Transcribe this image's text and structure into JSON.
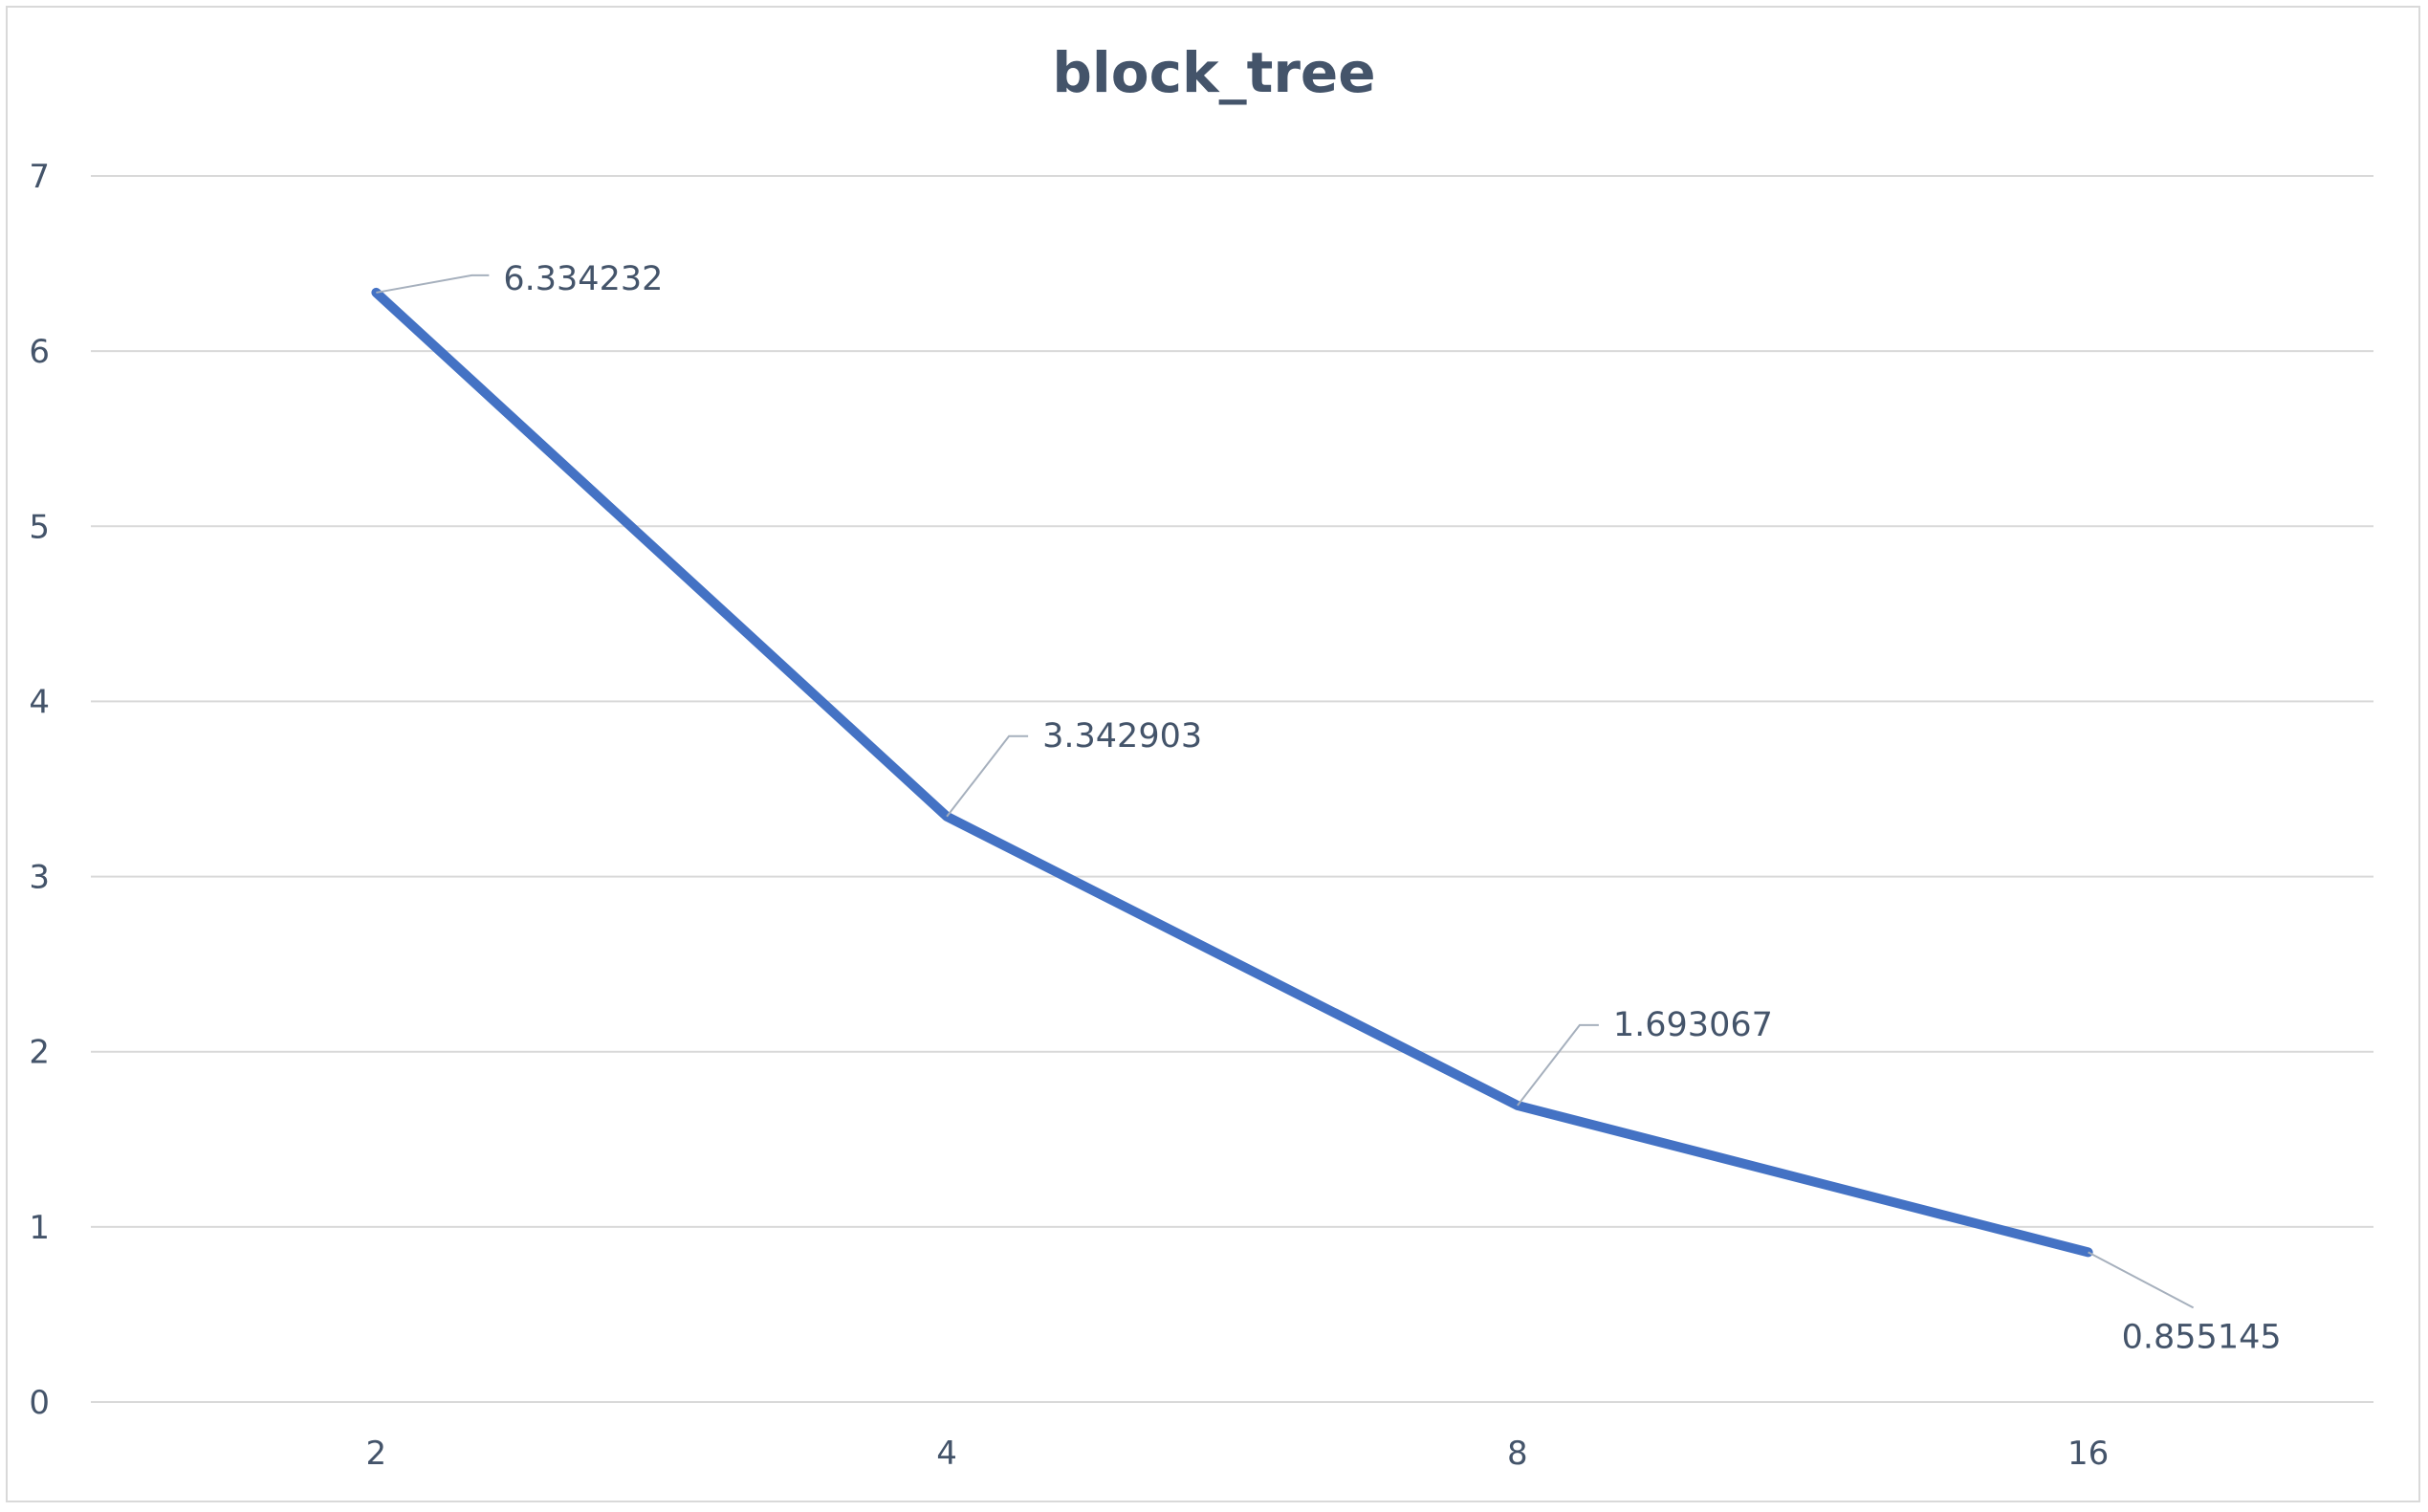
{
  "chart_data": {
    "type": "line",
    "title": "block_tree",
    "categories": [
      "2",
      "4",
      "8",
      "16"
    ],
    "series": [
      {
        "values": [
          6.334232,
          3.342903,
          1.693067,
          0.855145
        ],
        "data_labels": [
          "6.334232",
          "3.342903",
          "1.693067",
          "0.855145"
        ],
        "color": "#4472c4"
      }
    ],
    "xlabel": "",
    "ylabel": "",
    "ylim": [
      0,
      7
    ],
    "yticks": [
      "0",
      "1",
      "2",
      "3",
      "4",
      "5",
      "6",
      "7"
    ],
    "grid": true,
    "legend": "none"
  },
  "colors": {
    "series": "#4472c4",
    "text": "#44546a",
    "grid": "#d9d9d9",
    "leader": "#a6b0bd"
  }
}
